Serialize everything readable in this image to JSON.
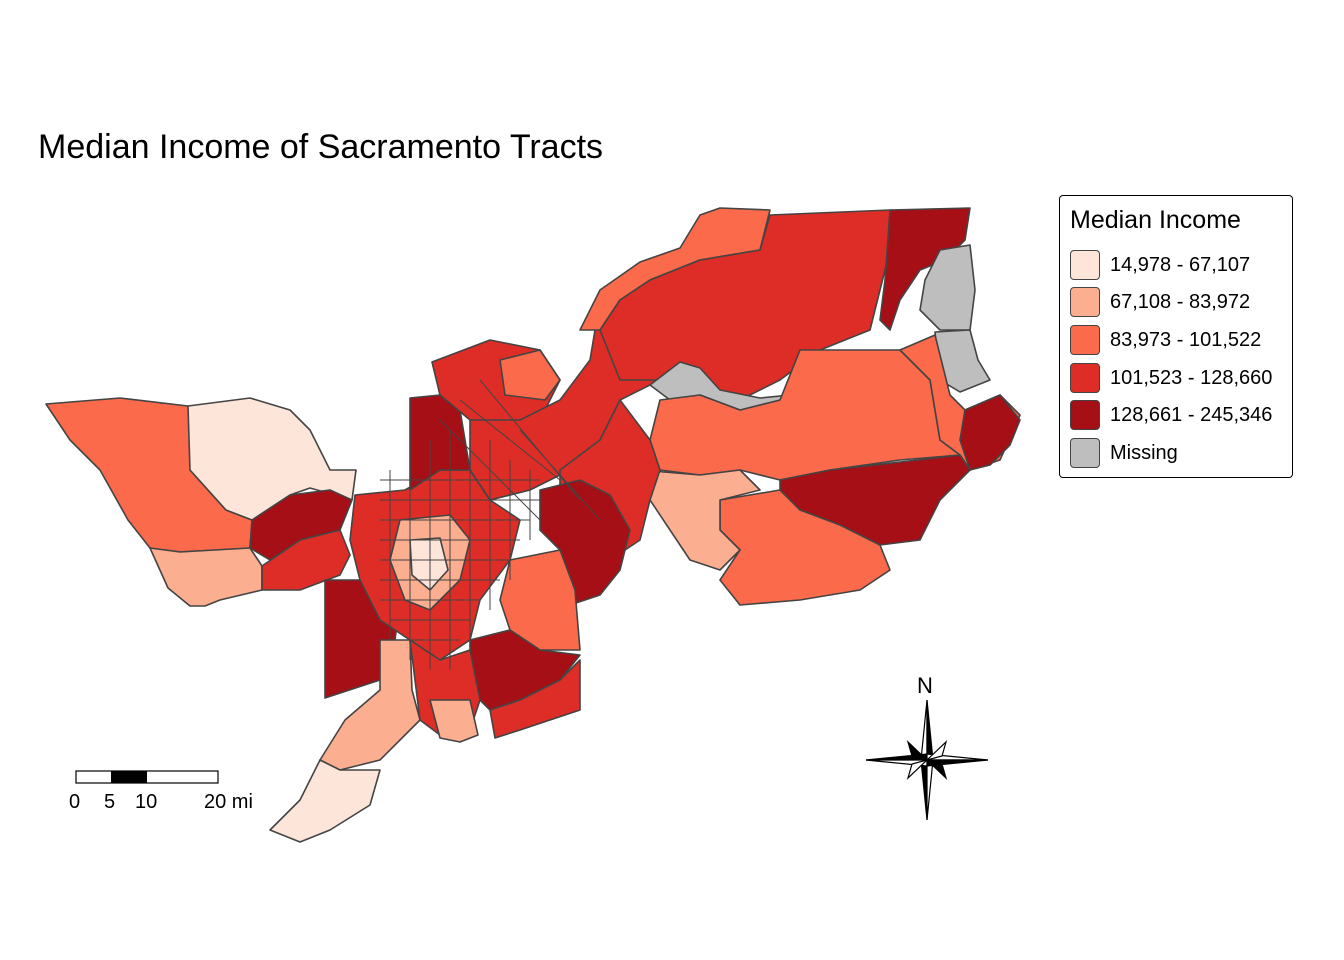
{
  "title": "Median Income of Sacramento Tracts",
  "legend": {
    "title": "Median Income",
    "items": [
      {
        "label": "14,978 - 67,107",
        "color": "#fee5d9"
      },
      {
        "label": "67,108 - 83,972",
        "color": "#fcae91"
      },
      {
        "label": "83,973 - 101,522",
        "color": "#fb6a4a"
      },
      {
        "label": "101,523 - 128,660",
        "color": "#de2d26"
      },
      {
        "label": "128,661 - 245,346",
        "color": "#a50f15"
      },
      {
        "label": "Missing",
        "color": "#bebebe"
      }
    ]
  },
  "scale_bar": {
    "ticks": [
      "0",
      "5",
      "10",
      "20 mi"
    ]
  },
  "north_arrow": {
    "label": "N"
  },
  "colors": {
    "border": "#444444",
    "background": "#ffffff"
  }
}
